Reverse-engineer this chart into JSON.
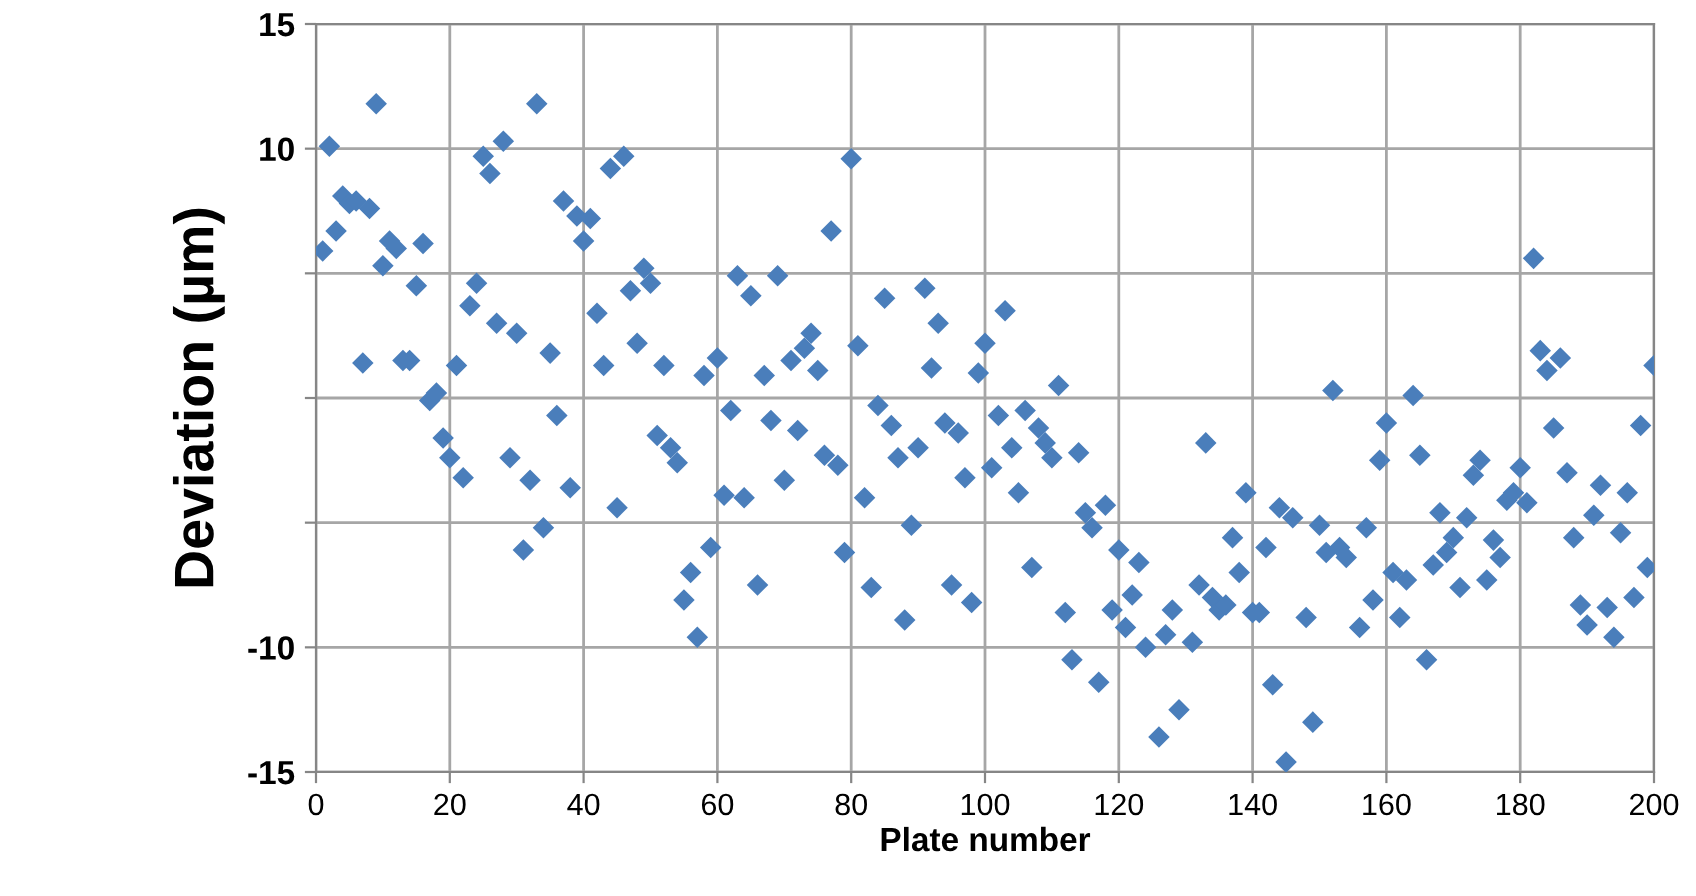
{
  "chart_data": {
    "type": "scatter",
    "xlabel": "Plate number",
    "ylabel": "Deviation (µm)",
    "x": [
      1,
      2,
      3,
      4,
      5,
      6,
      7,
      8,
      9,
      10,
      11,
      12,
      13,
      14,
      15,
      16,
      17,
      18,
      19,
      20,
      21,
      22,
      23,
      24,
      25,
      26,
      27,
      28,
      29,
      30,
      31,
      32,
      33,
      34,
      35,
      36,
      37,
      38,
      39,
      40,
      41,
      42,
      43,
      44,
      45,
      46,
      47,
      48,
      49,
      50,
      51,
      52,
      53,
      54,
      55,
      56,
      57,
      58,
      59,
      60,
      61,
      62,
      63,
      64,
      65,
      66,
      67,
      68,
      69,
      70,
      71,
      72,
      73,
      74,
      75,
      76,
      77,
      78,
      79,
      80,
      81,
      82,
      83,
      84,
      85,
      86,
      87,
      88,
      89,
      90,
      91,
      92,
      93,
      94,
      95,
      96,
      97,
      98,
      99,
      100,
      101,
      102,
      103,
      104,
      105,
      106,
      107,
      108,
      109,
      110,
      111,
      112,
      113,
      114,
      115,
      116,
      117,
      118,
      119,
      120,
      121,
      122,
      123,
      124,
      126,
      127,
      128,
      129,
      131,
      132,
      133,
      134,
      135,
      136,
      137,
      138,
      139,
      140,
      141,
      142,
      143,
      144,
      145,
      146,
      148,
      149,
      150,
      151,
      152,
      153,
      154,
      156,
      157,
      158,
      159,
      160,
      161,
      162,
      163,
      164,
      165,
      166,
      167,
      168,
      169,
      170,
      171,
      172,
      173,
      174,
      175,
      176,
      177,
      178,
      179,
      180,
      181,
      182,
      183,
      184,
      185,
      186,
      187,
      188,
      189,
      190,
      191,
      192,
      193,
      194,
      195,
      196,
      197,
      198,
      199,
      200
    ],
    "values": [
      5.9,
      10.1,
      6.7,
      8.1,
      7.8,
      7.9,
      1.4,
      7.6,
      11.8,
      5.3,
      6.3,
      6.0,
      1.5,
      1.5,
      4.5,
      6.2,
      -0.1,
      0.2,
      -1.6,
      -2.4,
      1.3,
      -3.2,
      3.7,
      4.6,
      9.7,
      9.0,
      3.0,
      10.3,
      -2.4,
      2.6,
      -6.1,
      -3.3,
      11.8,
      -5.2,
      1.8,
      -0.7,
      7.9,
      -3.6,
      7.3,
      6.3,
      7.2,
      3.4,
      1.3,
      9.2,
      -4.4,
      9.7,
      4.3,
      2.2,
      5.2,
      4.6,
      -1.5,
      1.3,
      -2.0,
      -2.6,
      -8.1,
      -7.0,
      -9.6,
      0.9,
      -6.0,
      1.6,
      -3.9,
      -0.5,
      4.9,
      -4.0,
      4.1,
      -7.5,
      0.9,
      -0.9,
      4.9,
      -3.3,
      1.5,
      -1.3,
      2.0,
      2.6,
      1.1,
      -2.3,
      6.7,
      -2.7,
      -6.2,
      9.6,
      2.1,
      -4.0,
      -7.6,
      -0.3,
      4.0,
      -1.1,
      -2.4,
      -8.9,
      -5.1,
      -2.0,
      4.4,
      1.2,
      3.0,
      -1.0,
      -7.5,
      -1.4,
      -3.2,
      -8.2,
      1.0,
      2.2,
      -2.8,
      -0.7,
      3.5,
      -2.0,
      -3.8,
      -0.5,
      -6.8,
      -1.2,
      -1.8,
      -2.4,
      0.5,
      -8.6,
      -10.5,
      -2.2,
      -4.6,
      -5.2,
      -11.4,
      -4.3,
      -8.5,
      -6.1,
      -9.2,
      -7.9,
      -6.6,
      -10.0,
      -13.6,
      -9.5,
      -8.5,
      -12.5,
      -9.8,
      -7.5,
      -1.8,
      -8.0,
      -8.5,
      -8.3,
      -5.6,
      -7.0,
      -3.8,
      -8.6,
      -8.6,
      -6.0,
      -11.5,
      -4.4,
      -14.6,
      -4.8,
      -8.8,
      -13.0,
      -5.1,
      -6.2,
      0.3,
      -6.0,
      -6.4,
      -9.2,
      -5.2,
      -8.1,
      -2.5,
      -1.0,
      -7.0,
      -8.8,
      -7.3,
      0.1,
      -2.3,
      -10.5,
      -6.7,
      -4.6,
      -6.2,
      -5.6,
      -7.6,
      -4.8,
      -3.1,
      -2.5,
      -7.3,
      -5.7,
      -6.4,
      -4.1,
      -3.8,
      -2.8,
      -4.2,
      5.6,
      1.9,
      1.1,
      -1.2,
      1.6,
      -3.0,
      -5.6,
      -8.3,
      -9.1,
      -4.7,
      -3.5,
      -8.4,
      -9.6,
      -5.4,
      -3.8,
      -8.0,
      -1.1,
      -6.8,
      1.3
    ],
    "color": "#4a7ebb",
    "marker": "diamond",
    "grid": true,
    "xlim": [
      0,
      200
    ],
    "xticks": [
      0,
      20,
      40,
      60,
      80,
      100,
      120,
      140,
      160,
      180,
      200
    ],
    "ylim": [
      -15,
      15
    ],
    "yticks": [
      -15,
      -10,
      {
        "value": -5,
        "label": null
      },
      {
        "value": 0,
        "label": null
      },
      {
        "value": 5,
        "label": null
      },
      10,
      15
    ]
  }
}
